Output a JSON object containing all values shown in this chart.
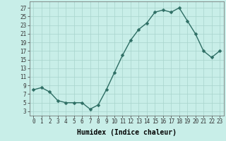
{
  "x": [
    0,
    1,
    2,
    3,
    4,
    5,
    6,
    7,
    8,
    9,
    10,
    11,
    12,
    13,
    14,
    15,
    16,
    17,
    18,
    19,
    20,
    21,
    22,
    23
  ],
  "y": [
    8,
    8.5,
    7.5,
    5.5,
    5,
    5,
    5,
    3.5,
    4.5,
    8,
    12,
    16,
    19.5,
    22,
    23.5,
    26,
    26.5,
    26,
    27,
    24,
    21,
    17,
    15.5,
    17
  ],
  "line_color": "#2e6e64",
  "marker_color": "#2e6e64",
  "bg_color": "#c8eee8",
  "grid_color": "#a8d4cc",
  "xlabel": "Humidex (Indice chaleur)",
  "ylabel_ticks": [
    3,
    5,
    7,
    9,
    11,
    13,
    15,
    17,
    19,
    21,
    23,
    25,
    27
  ],
  "xlim": [
    -0.5,
    23.5
  ],
  "ylim": [
    2.0,
    28.5
  ],
  "xticks": [
    0,
    1,
    2,
    3,
    4,
    5,
    6,
    7,
    8,
    9,
    10,
    11,
    12,
    13,
    14,
    15,
    16,
    17,
    18,
    19,
    20,
    21,
    22,
    23
  ],
  "xlabel_fontsize": 7,
  "tick_fontsize": 5.5,
  "marker_size": 2.5,
  "line_width": 1.0,
  "spine_color": "#666666"
}
